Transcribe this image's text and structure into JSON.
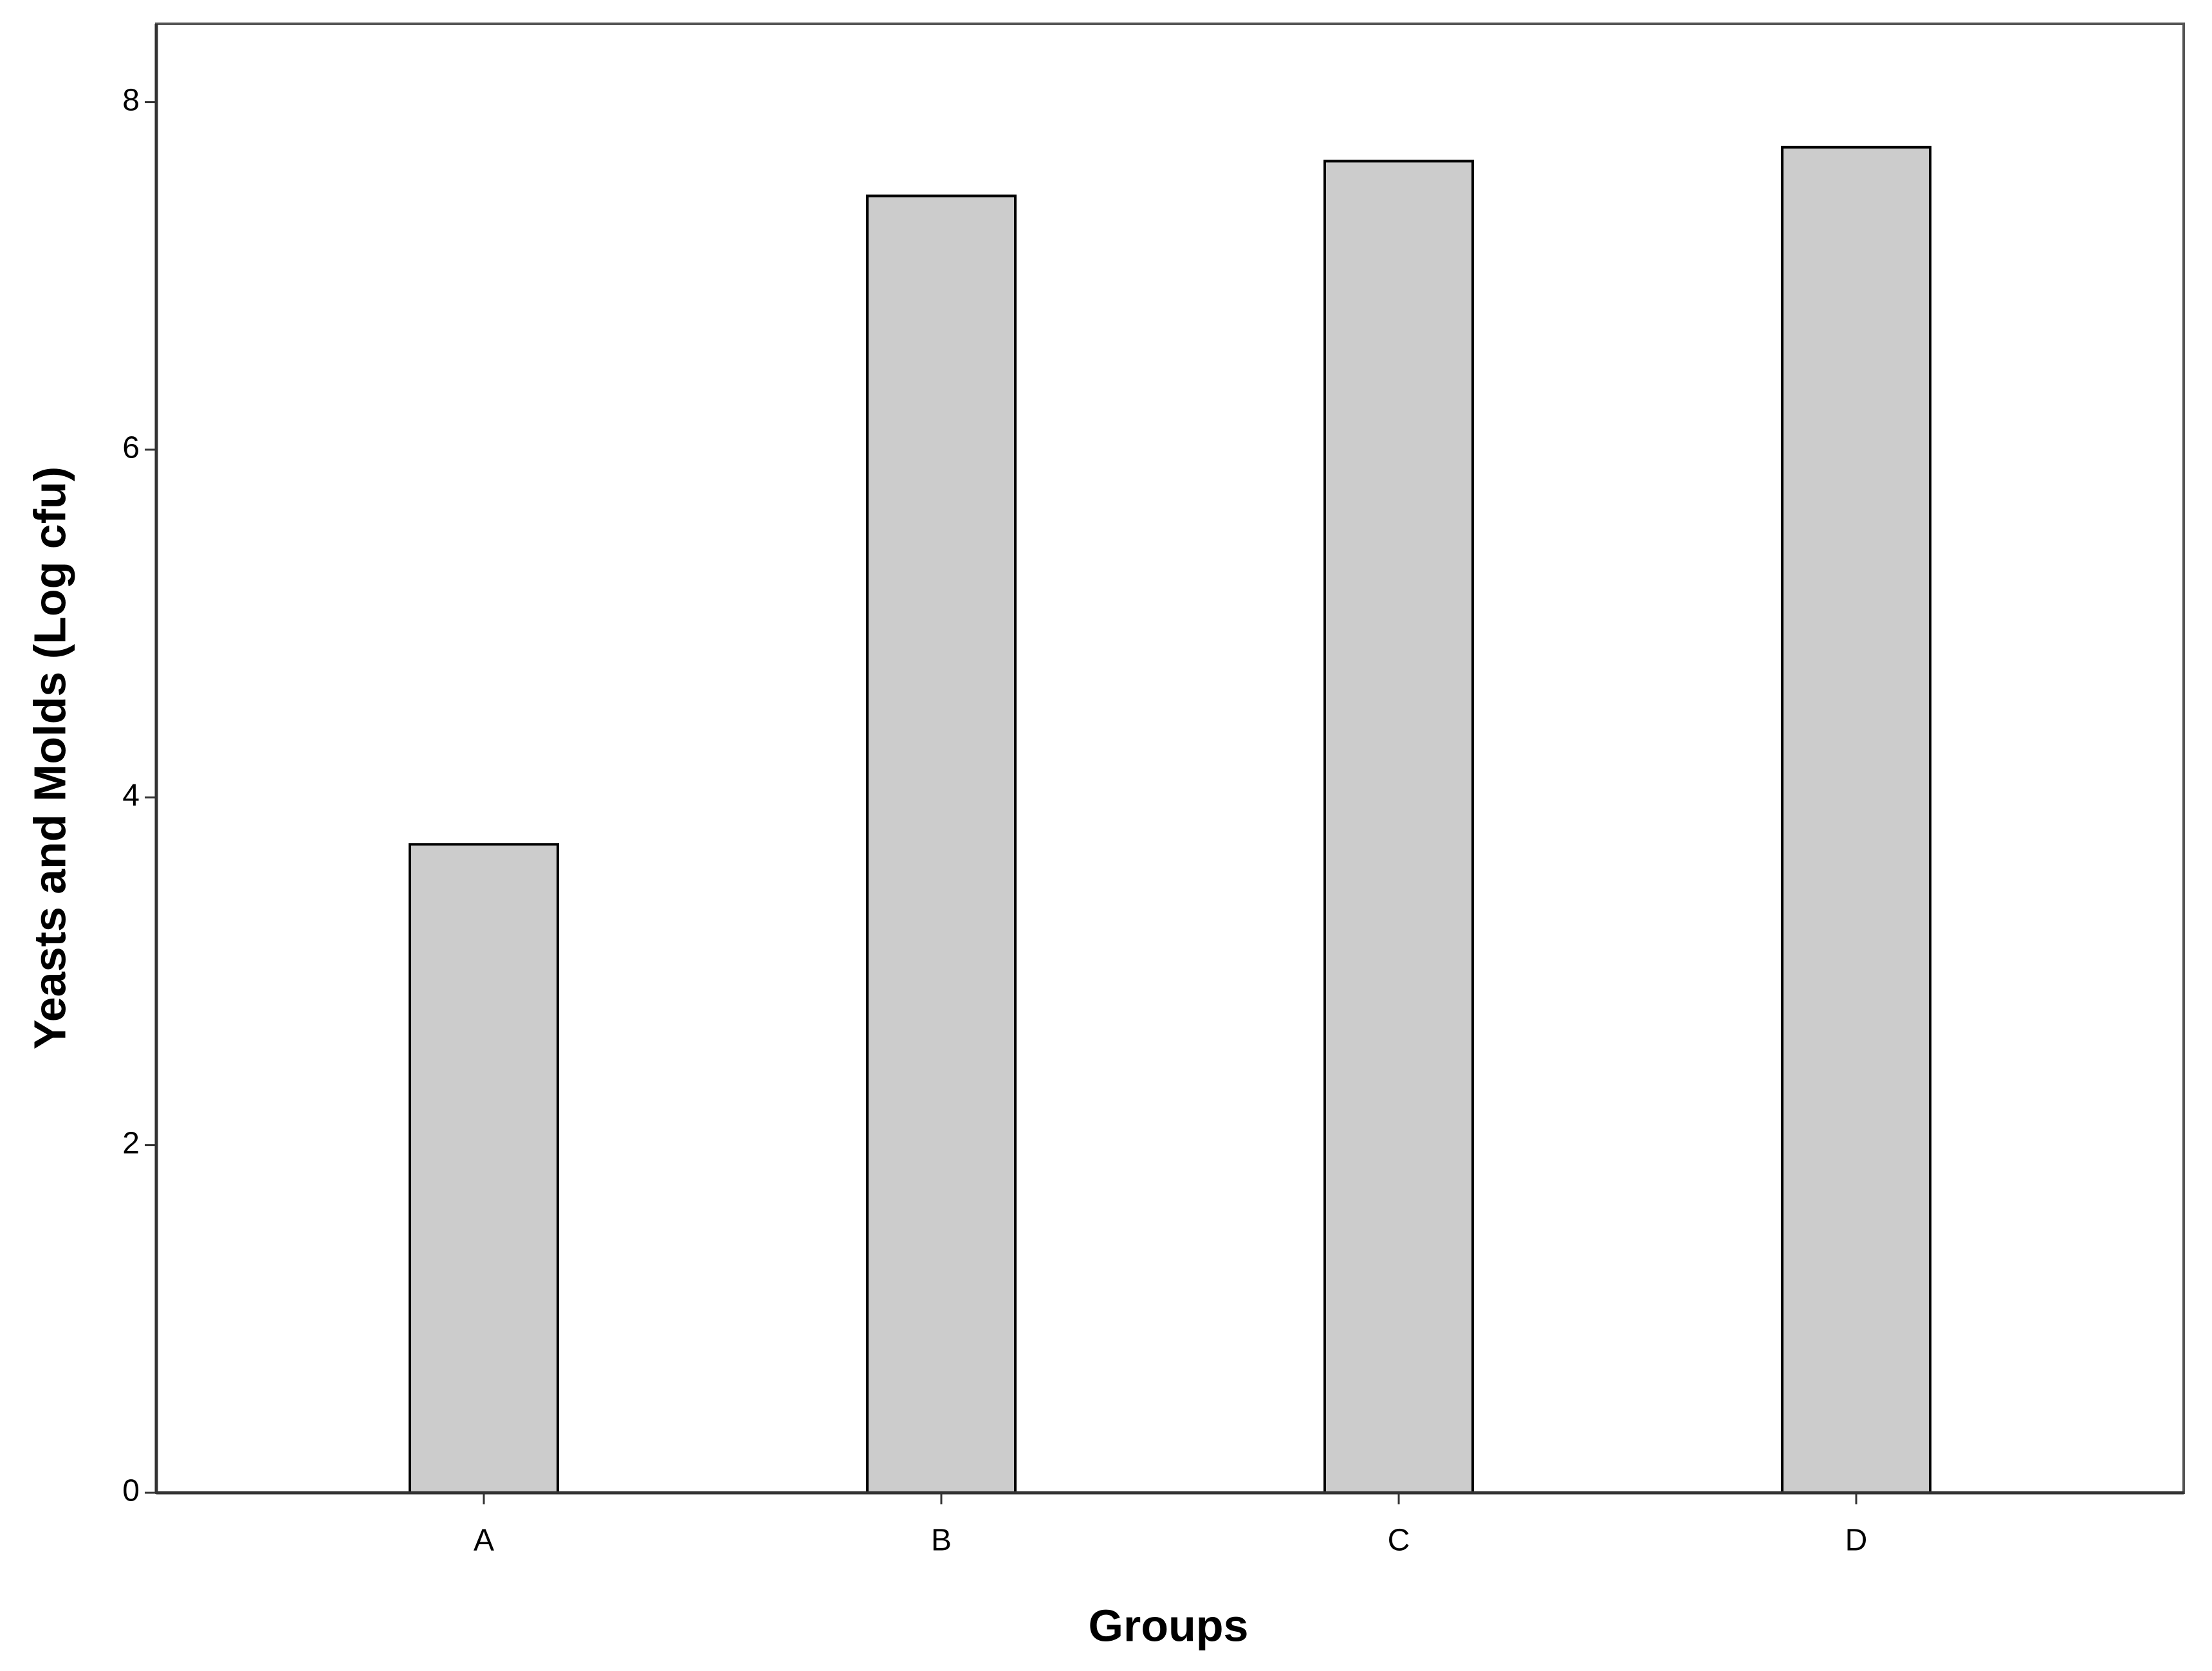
{
  "chart_data": {
    "type": "bar",
    "x_label": "Groups",
    "y_label": "Yeasts and Molds (Log cfu)",
    "categories": [
      "A",
      "B",
      "C",
      "D"
    ],
    "values": [
      3.73,
      7.46,
      7.66,
      7.74
    ],
    "color": "#cccccc",
    "ylim": [
      0,
      8.45
    ],
    "yticks": [
      0,
      2,
      4,
      6,
      8
    ]
  }
}
